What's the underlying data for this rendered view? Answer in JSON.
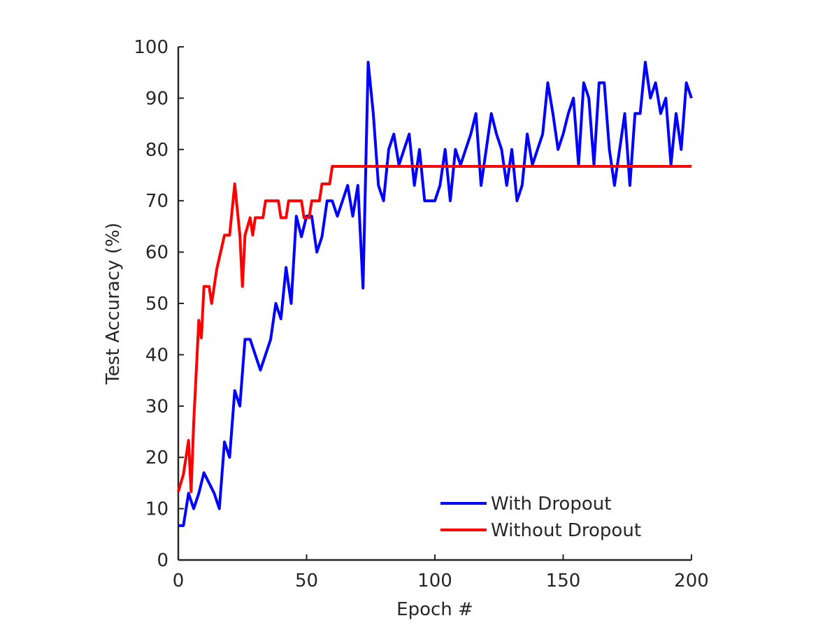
{
  "chart_data": {
    "type": "line",
    "xlabel": "Epoch #",
    "ylabel": "Test Accuracy (%)",
    "xlim": [
      0,
      200
    ],
    "xticks": [
      0,
      50,
      100,
      150,
      200
    ],
    "ylim": [
      0,
      100
    ],
    "yticks": [
      0,
      10,
      20,
      30,
      40,
      50,
      60,
      70,
      80,
      90,
      100
    ],
    "grid": false,
    "legend": "lower right",
    "series": [
      {
        "name": "With Dropout",
        "color": "#0000ff",
        "x": [
          0,
          2,
          4,
          6,
          8,
          10,
          12,
          14,
          16,
          18,
          20,
          22,
          24,
          26,
          28,
          30,
          32,
          34,
          36,
          38,
          40,
          42,
          44,
          46,
          48,
          50,
          52,
          54,
          56,
          58,
          60,
          62,
          64,
          66,
          68,
          70,
          72,
          74,
          76,
          78,
          80,
          82,
          84,
          86,
          88,
          90,
          92,
          94,
          96,
          98,
          100,
          102,
          104,
          106,
          108,
          110,
          112,
          114,
          116,
          118,
          120,
          122,
          124,
          126,
          128,
          130,
          132,
          134,
          136,
          138,
          140,
          142,
          144,
          146,
          148,
          150,
          152,
          154,
          156,
          158,
          160,
          162,
          164,
          166,
          168,
          170,
          172,
          174,
          176,
          178,
          180,
          182,
          184,
          186,
          188,
          190,
          192,
          194,
          196,
          198,
          200
        ],
        "values": [
          6.7,
          6.7,
          13,
          10,
          13,
          17,
          15,
          13,
          10,
          23,
          20,
          33,
          30,
          43,
          43,
          40,
          37,
          40,
          43,
          50,
          47,
          57,
          50,
          67,
          63,
          67,
          67,
          60,
          63,
          70,
          70,
          67,
          70,
          73,
          67,
          73,
          53,
          97,
          87,
          73,
          70,
          80,
          83,
          77,
          80,
          83,
          73,
          80,
          70,
          70,
          70,
          73,
          80,
          70,
          80,
          77,
          80,
          83,
          87,
          73,
          80,
          87,
          83,
          80,
          73,
          80,
          70,
          73,
          83,
          77,
          80,
          83,
          93,
          87,
          80,
          83,
          87,
          90,
          77,
          93,
          90,
          77,
          93,
          93,
          80,
          73,
          80,
          87,
          73,
          87,
          87,
          97,
          90,
          93,
          87,
          90,
          77,
          87,
          80,
          93,
          90
        ]
      },
      {
        "name": "Without Dropout",
        "color": "#ff0000",
        "x": [
          0,
          2,
          4,
          5,
          6,
          8,
          9,
          10,
          12,
          13,
          15,
          18,
          20,
          22,
          24,
          25,
          26,
          28,
          29,
          30,
          33,
          34,
          39,
          40,
          42,
          43,
          48,
          49,
          51,
          52,
          55,
          56,
          59,
          60,
          200
        ],
        "values": [
          13.3,
          16.7,
          23.3,
          13.3,
          26.7,
          46.7,
          43.3,
          53.3,
          53.3,
          50,
          56.7,
          63.3,
          63.3,
          73.3,
          63.3,
          53.3,
          63.3,
          66.7,
          63.3,
          66.7,
          66.7,
          70,
          70,
          66.7,
          66.7,
          70,
          70,
          66.7,
          66.7,
          70,
          70,
          73.3,
          73.3,
          76.7,
          76.7
        ]
      }
    ]
  }
}
